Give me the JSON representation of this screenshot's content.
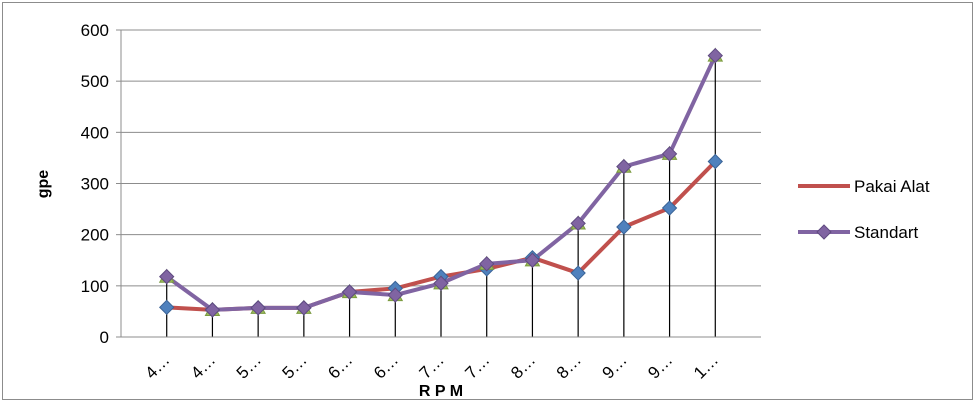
{
  "chart_data": {
    "type": "line",
    "title": "",
    "xlabel": "R P M",
    "ylabel": "gpe",
    "ylim": [
      0,
      600
    ],
    "yticks": [
      0,
      100,
      200,
      300,
      400,
      500,
      600
    ],
    "grid": true,
    "legend_position": "right",
    "categories": [
      "4…",
      "4…",
      "5…",
      "5…",
      "6…",
      "6…",
      "7…",
      "7…",
      "8…",
      "8…",
      "9…",
      "9…",
      "1…"
    ],
    "series": [
      {
        "name": "Pakai Alat",
        "color": "#c0504d",
        "marker": "diamond",
        "marker_color": "#4f81bd",
        "values": [
          58,
          53,
          57,
          57,
          88,
          95,
          118,
          133,
          155,
          125,
          215,
          252,
          343
        ]
      },
      {
        "name": "Standart",
        "color": "#8064a2",
        "marker": "triangle",
        "marker_color": "#9bbb59",
        "values": [
          118,
          53,
          57,
          57,
          88,
          82,
          105,
          143,
          150,
          222,
          333,
          358,
          550
        ]
      }
    ]
  }
}
